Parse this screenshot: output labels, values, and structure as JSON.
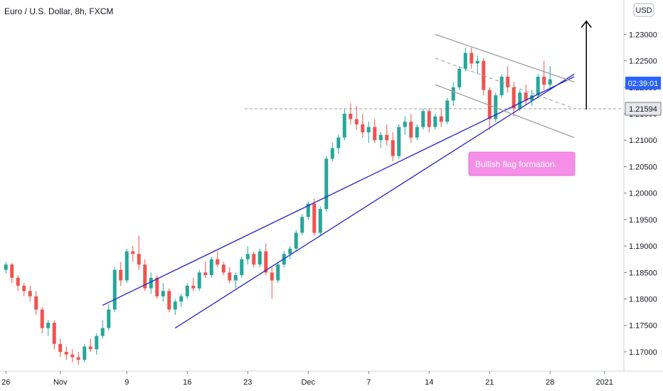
{
  "chart_data": {
    "type": "candlestick",
    "title": "Euro / U.S. Dollar, 8h, FXCM",
    "currency_button": "USD",
    "y_ticks": [
      "1.23000",
      "1.22500",
      "1.22000",
      "1.21500",
      "1.21000",
      "1.20500",
      "1.20000",
      "1.19500",
      "1.19000",
      "1.18500",
      "1.18000",
      "1.17500",
      "1.17000"
    ],
    "x_ticks": [
      {
        "label": "26",
        "index": 0
      },
      {
        "label": "Nov",
        "index": 9
      },
      {
        "label": "9",
        "index": 20
      },
      {
        "label": "16",
        "index": 30
      },
      {
        "label": "23",
        "index": 40
      },
      {
        "label": "Dec",
        "index": 50
      },
      {
        "label": "7",
        "index": 60
      },
      {
        "label": "14",
        "index": 70
      },
      {
        "label": "21",
        "index": 80
      },
      {
        "label": "28",
        "index": 90
      },
      {
        "label": "2021",
        "index": 99
      }
    ],
    "ylim": [
      1.1665,
      1.2365
    ],
    "xlim": [
      0,
      108
    ],
    "price_label": "1.21594",
    "countdown_label": "02:39:01",
    "countdown_value": 1.2208,
    "level_line": 1.21594,
    "annotation": "Bullish flag formation.",
    "target_arrow": {
      "index": 96,
      "from": 1.2158,
      "to": 1.2325
    },
    "trendlines": [
      {
        "from": [
          16,
          1.1788
        ],
        "to": [
          94,
          1.222
        ],
        "color": "#1e22c8"
      },
      {
        "from": [
          28,
          1.1745
        ],
        "to": [
          94,
          1.2225
        ],
        "color": "#1e22c8"
      },
      {
        "from": [
          71,
          1.23
        ],
        "to": [
          94,
          1.221
        ],
        "color": "#9e9e9e"
      },
      {
        "from": [
          71,
          1.2255
        ],
        "to": [
          94,
          1.216
        ],
        "color": "#9e9e9e",
        "dashed": true
      },
      {
        "from": [
          71,
          1.2205
        ],
        "to": [
          94,
          1.2105
        ],
        "color": "#9e9e9e"
      }
    ],
    "candles": [
      [
        1.1855,
        1.187,
        1.1848,
        1.1865
      ],
      [
        1.1865,
        1.1868,
        1.183,
        1.184
      ],
      [
        1.184,
        1.1845,
        1.1815,
        1.1825
      ],
      [
        1.1825,
        1.183,
        1.1805,
        1.1815
      ],
      [
        1.1815,
        1.1825,
        1.1795,
        1.1805
      ],
      [
        1.1805,
        1.1815,
        1.177,
        1.178
      ],
      [
        1.178,
        1.1785,
        1.1735,
        1.1745
      ],
      [
        1.1745,
        1.176,
        1.173,
        1.1755
      ],
      [
        1.1755,
        1.176,
        1.1705,
        1.1715
      ],
      [
        1.1715,
        1.1725,
        1.169,
        1.17
      ],
      [
        1.17,
        1.171,
        1.1685,
        1.1695
      ],
      [
        1.1695,
        1.1705,
        1.168,
        1.169
      ],
      [
        1.169,
        1.17,
        1.1675,
        1.1685
      ],
      [
        1.1685,
        1.1715,
        1.168,
        1.171
      ],
      [
        1.171,
        1.1725,
        1.17,
        1.1705
      ],
      [
        1.1705,
        1.1735,
        1.1695,
        1.173
      ],
      [
        1.173,
        1.176,
        1.1725,
        1.1745
      ],
      [
        1.1745,
        1.179,
        1.174,
        1.178
      ],
      [
        1.178,
        1.186,
        1.1775,
        1.1855
      ],
      [
        1.1855,
        1.187,
        1.1825,
        1.1835
      ],
      [
        1.1835,
        1.1895,
        1.183,
        1.189
      ],
      [
        1.189,
        1.19,
        1.187,
        1.1885
      ],
      [
        1.1885,
        1.192,
        1.1855,
        1.1865
      ],
      [
        1.1865,
        1.1875,
        1.1815,
        1.182
      ],
      [
        1.182,
        1.185,
        1.181,
        1.184
      ],
      [
        1.184,
        1.1845,
        1.18,
        1.1805
      ],
      [
        1.1805,
        1.183,
        1.1795,
        1.1815
      ],
      [
        1.1815,
        1.182,
        1.1775,
        1.178
      ],
      [
        1.178,
        1.18,
        1.177,
        1.1795
      ],
      [
        1.1795,
        1.181,
        1.1785,
        1.1805
      ],
      [
        1.1805,
        1.183,
        1.18,
        1.1825
      ],
      [
        1.1825,
        1.184,
        1.1815,
        1.182
      ],
      [
        1.182,
        1.1855,
        1.1815,
        1.185
      ],
      [
        1.185,
        1.187,
        1.184,
        1.1845
      ],
      [
        1.1845,
        1.188,
        1.184,
        1.1875
      ],
      [
        1.1875,
        1.189,
        1.186,
        1.1865
      ],
      [
        1.1865,
        1.187,
        1.1845,
        1.185
      ],
      [
        1.185,
        1.186,
        1.183,
        1.1835
      ],
      [
        1.1835,
        1.185,
        1.182,
        1.1845
      ],
      [
        1.1845,
        1.188,
        1.184,
        1.1875
      ],
      [
        1.1875,
        1.19,
        1.1865,
        1.1885
      ],
      [
        1.1885,
        1.189,
        1.186,
        1.1865
      ],
      [
        1.1865,
        1.1895,
        1.186,
        1.189
      ],
      [
        1.189,
        1.1905,
        1.1845,
        1.185
      ],
      [
        1.185,
        1.186,
        1.18,
        1.1835
      ],
      [
        1.1835,
        1.187,
        1.183,
        1.1865
      ],
      [
        1.1865,
        1.189,
        1.186,
        1.1885
      ],
      [
        1.1885,
        1.19,
        1.1875,
        1.1895
      ],
      [
        1.1895,
        1.193,
        1.189,
        1.1925
      ],
      [
        1.1925,
        1.196,
        1.192,
        1.1955
      ],
      [
        1.1955,
        1.1985,
        1.195,
        1.198
      ],
      [
        1.198,
        1.199,
        1.192,
        1.1925
      ],
      [
        1.1925,
        1.1975,
        1.192,
        1.197
      ],
      [
        1.197,
        1.207,
        1.1965,
        1.2065
      ],
      [
        1.2065,
        1.2095,
        1.206,
        1.2085
      ],
      [
        1.2085,
        1.211,
        1.2075,
        1.2105
      ],
      [
        1.2105,
        1.216,
        1.21,
        1.215
      ],
      [
        1.215,
        1.217,
        1.213,
        1.214
      ],
      [
        1.214,
        1.2165,
        1.212,
        1.213
      ],
      [
        1.213,
        1.215,
        1.2105,
        1.2115
      ],
      [
        1.2115,
        1.2135,
        1.2095,
        1.2125
      ],
      [
        1.2125,
        1.214,
        1.2095,
        1.21
      ],
      [
        1.21,
        1.2115,
        1.2085,
        1.211
      ],
      [
        1.211,
        1.213,
        1.209,
        1.21
      ],
      [
        1.21,
        1.2115,
        1.206,
        1.207
      ],
      [
        1.207,
        1.213,
        1.2065,
        1.2125
      ],
      [
        1.2125,
        1.2145,
        1.211,
        1.2135
      ],
      [
        1.2135,
        1.215,
        1.2095,
        1.2105
      ],
      [
        1.2105,
        1.213,
        1.21,
        1.2125
      ],
      [
        1.2125,
        1.216,
        1.212,
        1.2155
      ],
      [
        1.2155,
        1.216,
        1.2115,
        1.2125
      ],
      [
        1.2125,
        1.215,
        1.212,
        1.2145
      ],
      [
        1.2145,
        1.216,
        1.2125,
        1.2135
      ],
      [
        1.2135,
        1.218,
        1.213,
        1.2175
      ],
      [
        1.2175,
        1.221,
        1.2165,
        1.22
      ],
      [
        1.22,
        1.224,
        1.2195,
        1.2235
      ],
      [
        1.2235,
        1.2275,
        1.223,
        1.2265
      ],
      [
        1.2265,
        1.2275,
        1.2235,
        1.2245
      ],
      [
        1.2245,
        1.226,
        1.2225,
        1.225
      ],
      [
        1.225,
        1.2255,
        1.2185,
        1.2195
      ],
      [
        1.2195,
        1.22,
        1.212,
        1.214
      ],
      [
        1.214,
        1.219,
        1.2135,
        1.2185
      ],
      [
        1.2185,
        1.2225,
        1.218,
        1.222
      ],
      [
        1.222,
        1.224,
        1.219,
        1.22
      ],
      [
        1.22,
        1.221,
        1.2145,
        1.216
      ],
      [
        1.216,
        1.2195,
        1.2155,
        1.219
      ],
      [
        1.219,
        1.2205,
        1.2165,
        1.2175
      ],
      [
        1.2175,
        1.2195,
        1.2165,
        1.2185
      ],
      [
        1.2185,
        1.2225,
        1.218,
        1.222
      ],
      [
        1.222,
        1.225,
        1.2195,
        1.2205
      ],
      [
        1.2205,
        1.224,
        1.2195,
        1.2215
      ]
    ],
    "colors": {
      "up": "#26a69a",
      "down": "#ef5350",
      "trend": "#1e22c8",
      "channel": "#9e9e9e",
      "countdown": "#2962ff",
      "annotation": "#f58ee6",
      "level": "#9e9e9e"
    }
  }
}
